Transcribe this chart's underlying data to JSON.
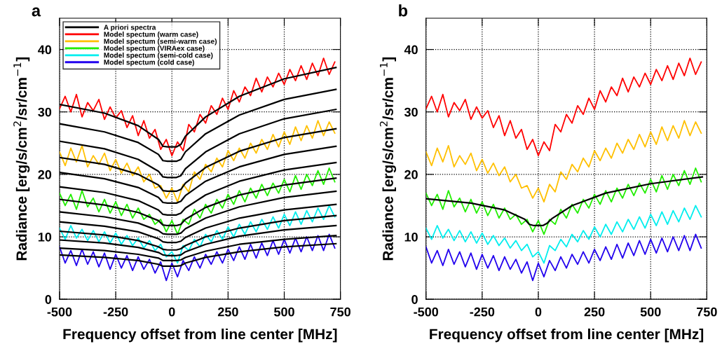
{
  "chart_data": [
    {
      "type": "line",
      "title": "a",
      "xlabel": "Frequency offset from line center [MHz]",
      "ylabel": "Radiance [erg/s/cm$^{2}$/sr/cm$^{−1}$]",
      "xlim": [
        -500,
        750
      ],
      "xticks": [
        -500,
        -250,
        0,
        250,
        500,
        750
      ],
      "ylim": [
        0,
        45
      ],
      "yticks": [
        0,
        10,
        20,
        30,
        40
      ],
      "grid": true,
      "legend": "top left",
      "line_style": "solid",
      "series": [
        {
          "name": "A priori spectra",
          "color": "#000000",
          "x": [
            -500,
            -300,
            -150,
            -60,
            -40,
            -20,
            20,
            40,
            60,
            150,
            300,
            500,
            730
          ],
          "values": [
            31.2,
            29.8,
            27.8,
            25.6,
            24.5,
            24.4,
            24.4,
            24.8,
            26.1,
            29.2,
            32.5,
            35.3,
            37.1
          ]
        },
        {
          "color": "#000000",
          "x": [
            -500,
            -300,
            -150,
            -60,
            -40,
            -20,
            20,
            40,
            60,
            150,
            300,
            500,
            730
          ],
          "values": [
            28.1,
            26.8,
            25.1,
            23.2,
            22.2,
            22.1,
            22.1,
            22.4,
            23.6,
            26.5,
            29.5,
            32.0,
            33.6
          ]
        },
        {
          "color": "#000000",
          "x": [
            -500,
            -300,
            -150,
            -60,
            -40,
            -20,
            20,
            40,
            60,
            150,
            300,
            500,
            730
          ],
          "values": [
            25.3,
            24.1,
            22.4,
            20.5,
            19.6,
            19.5,
            19.5,
            19.8,
            20.9,
            23.6,
            26.5,
            28.9,
            30.4
          ]
        },
        {
          "color": "#000000",
          "x": [
            -500,
            -300,
            -150,
            -60,
            -40,
            -20,
            20,
            40,
            60,
            150,
            300,
            500,
            730
          ],
          "values": [
            22.7,
            21.6,
            20.0,
            18.3,
            17.4,
            17.3,
            17.3,
            17.6,
            18.6,
            21.1,
            23.7,
            25.9,
            27.3
          ]
        },
        {
          "color": "#000000",
          "x": [
            -500,
            -300,
            -150,
            -60,
            -40,
            -20,
            20,
            40,
            60,
            150,
            300,
            500,
            730
          ],
          "values": [
            20.3,
            19.3,
            17.9,
            16.3,
            15.5,
            15.4,
            15.4,
            15.7,
            16.6,
            18.9,
            21.2,
            23.2,
            24.5
          ]
        },
        {
          "color": "#000000",
          "x": [
            -500,
            -300,
            -150,
            -60,
            -40,
            -20,
            20,
            40,
            60,
            150,
            300,
            500,
            730
          ],
          "values": [
            18.0,
            17.1,
            15.8,
            14.3,
            13.6,
            13.5,
            13.5,
            13.8,
            14.6,
            16.7,
            18.9,
            20.7,
            21.9
          ]
        },
        {
          "color": "#000000",
          "x": [
            -500,
            -300,
            -150,
            -60,
            -40,
            -20,
            20,
            40,
            60,
            150,
            300,
            500,
            730
          ],
          "values": [
            16.0,
            15.1,
            13.9,
            12.6,
            11.9,
            11.8,
            11.8,
            12.0,
            12.8,
            14.7,
            16.7,
            18.3,
            19.4
          ]
        },
        {
          "color": "#000000",
          "x": [
            -500,
            -300,
            -150,
            -60,
            -40,
            -20,
            20,
            40,
            60,
            150,
            300,
            500,
            730
          ],
          "values": [
            14.0,
            13.2,
            12.2,
            11.0,
            10.5,
            10.4,
            10.4,
            10.6,
            11.3,
            13.0,
            14.8,
            16.3,
            17.3
          ]
        },
        {
          "color": "#000000",
          "x": [
            -500,
            -300,
            -150,
            -60,
            -40,
            -20,
            20,
            40,
            60,
            150,
            300,
            500,
            730
          ],
          "values": [
            12.4,
            11.7,
            10.8,
            9.7,
            9.2,
            9.1,
            9.1,
            9.3,
            9.9,
            11.4,
            13.0,
            14.3,
            15.2
          ]
        },
        {
          "color": "#000000",
          "x": [
            -500,
            -300,
            -150,
            -60,
            -40,
            -20,
            20,
            40,
            60,
            150,
            300,
            500,
            730
          ],
          "values": [
            10.9,
            10.3,
            9.4,
            8.4,
            8.0,
            7.9,
            7.9,
            8.1,
            8.6,
            10.0,
            11.4,
            12.6,
            13.4
          ]
        },
        {
          "color": "#000000",
          "x": [
            -500,
            -300,
            -150,
            -60,
            -40,
            -20,
            20,
            40,
            60,
            150,
            300,
            500,
            730
          ],
          "values": [
            9.5,
            9.0,
            8.3,
            7.5,
            7.1,
            7.0,
            7.0,
            7.1,
            7.6,
            8.8,
            10.1,
            11.1,
            11.8
          ]
        },
        {
          "color": "#000000",
          "x": [
            -500,
            -300,
            -150,
            -60,
            -40,
            -20,
            20,
            40,
            60,
            150,
            300,
            500,
            730
          ],
          "values": [
            8.2,
            7.8,
            7.2,
            6.6,
            6.2,
            6.2,
            6.2,
            6.3,
            6.7,
            7.7,
            8.8,
            9.6,
            10.2
          ]
        },
        {
          "color": "#000000",
          "x": [
            -500,
            -300,
            -150,
            -60,
            -40,
            -20,
            20,
            40,
            60,
            150,
            300,
            500,
            730
          ],
          "values": [
            7.1,
            6.7,
            6.2,
            5.6,
            5.3,
            5.3,
            5.3,
            5.4,
            5.8,
            6.7,
            7.6,
            8.4,
            8.9
          ]
        },
        {
          "name": "Model spectum (warm case)",
          "color": "#ff0000",
          "values": [
            30.5,
            32.5,
            30.0,
            32.8,
            29.2,
            31.5,
            30.2,
            32.0,
            28.8,
            30.8,
            29.0,
            30.2,
            27.5,
            29.4,
            26.2,
            28.6,
            25.8,
            27.2,
            24.0,
            25.6,
            23.0,
            25.2,
            23.8,
            28.0,
            26.8,
            29.6,
            28.2,
            31.0,
            29.6,
            32.2,
            30.4,
            33.4,
            31.6,
            34.0,
            32.6,
            35.4,
            33.2,
            35.6,
            34.0,
            36.2,
            34.4,
            36.8,
            35.0,
            37.4,
            35.2,
            37.8,
            35.8,
            38.6,
            36.0,
            38.0
          ]
        },
        {
          "name": "Model spectum (semi-warm case)",
          "color": "#ffc000",
          "values": [
            23.6,
            21.4,
            24.2,
            22.0,
            24.6,
            21.2,
            23.0,
            21.6,
            23.4,
            20.6,
            22.4,
            20.2,
            21.8,
            19.8,
            21.2,
            18.8,
            20.0,
            17.8,
            18.2,
            16.2,
            17.8,
            15.6,
            18.4,
            17.2,
            20.4,
            19.2,
            21.6,
            20.4,
            22.6,
            21.2,
            23.8,
            22.2,
            24.2,
            22.6,
            25.0,
            23.4,
            25.6,
            24.0,
            26.4,
            24.4,
            26.8,
            24.8,
            27.6,
            25.4,
            27.8,
            25.8,
            28.6,
            26.2,
            28.4,
            26.6
          ]
        },
        {
          "name": "Model spectum (VIRAex case)",
          "color": "#22ee00",
          "values": [
            17.0,
            15.0,
            16.8,
            14.4,
            17.4,
            14.8,
            16.2,
            14.0,
            16.0,
            13.8,
            15.6,
            13.4,
            15.2,
            13.0,
            14.6,
            12.8,
            13.6,
            12.0,
            12.8,
            10.8,
            12.6,
            10.4,
            12.8,
            12.0,
            14.4,
            13.0,
            15.2,
            13.8,
            16.0,
            14.6,
            16.8,
            15.2,
            17.4,
            15.6,
            17.8,
            16.2,
            18.4,
            16.6,
            18.6,
            17.0,
            19.2,
            17.2,
            19.8,
            17.6,
            20.0,
            18.2,
            20.6,
            18.4,
            21.0,
            18.8
          ]
        },
        {
          "name": "Model spectum (semi-cold case)",
          "color": "#00eeee",
          "values": [
            11.4,
            9.6,
            11.8,
            9.8,
            11.2,
            9.4,
            11.0,
            9.2,
            10.8,
            9.0,
            10.6,
            8.8,
            10.2,
            8.6,
            9.8,
            8.2,
            9.4,
            7.8,
            8.8,
            6.8,
            7.6,
            5.8,
            8.6,
            7.8,
            9.6,
            8.4,
            10.4,
            9.2,
            11.0,
            9.6,
            11.6,
            10.0,
            12.0,
            10.4,
            12.4,
            10.8,
            12.8,
            11.2,
            13.2,
            11.4,
            13.6,
            11.8,
            14.0,
            12.0,
            14.2,
            12.4,
            14.6,
            12.8,
            15.0,
            13.2
          ]
        },
        {
          "name": "Model spectum (cold case)",
          "color": "#2200ee",
          "values": [
            8.4,
            5.8,
            7.8,
            5.4,
            8.0,
            5.6,
            7.6,
            5.2,
            7.4,
            4.8,
            7.2,
            5.0,
            7.0,
            4.6,
            6.8,
            4.8,
            6.4,
            4.2,
            6.0,
            3.0,
            5.8,
            3.6,
            6.2,
            4.6,
            6.8,
            5.0,
            7.2,
            5.6,
            7.6,
            5.8,
            8.0,
            6.2,
            8.4,
            6.4,
            8.8,
            6.6,
            9.0,
            7.0,
            9.4,
            7.2,
            9.6,
            7.4,
            9.8,
            7.6,
            10.0,
            7.8,
            10.2,
            7.8,
            10.4,
            8.2
          ]
        }
      ],
      "x": [
        -500,
        -475,
        -450,
        -425,
        -400,
        -375,
        -350,
        -325,
        -300,
        -275,
        -250,
        -225,
        -200,
        -175,
        -150,
        -125,
        -100,
        -75,
        -50,
        -25,
        0,
        25,
        50,
        75,
        100,
        125,
        150,
        175,
        200,
        225,
        250,
        275,
        300,
        325,
        350,
        375,
        400,
        425,
        450,
        475,
        500,
        525,
        550,
        575,
        600,
        625,
        650,
        675,
        700,
        725
      ]
    },
    {
      "type": "line",
      "title": "b",
      "xlabel": "Frequency offset from line center [MHz]",
      "ylabel": "Radiance [erg/s/cm$^{2}$/sr/cm$^{−1}$]",
      "xlim": [
        -500,
        750
      ],
      "xticks": [
        -500,
        -250,
        0,
        250,
        500,
        750
      ],
      "ylim": [
        0,
        45
      ],
      "yticks": [
        0,
        10,
        20,
        30,
        40
      ],
      "grid": true,
      "line_style": "solid",
      "series": [
        {
          "color": "#000000",
          "x": [
            -500,
            -300,
            -150,
            -60,
            -40,
            -20,
            20,
            40,
            60,
            150,
            300,
            500,
            730
          ],
          "values": [
            16.1,
            15.4,
            14.3,
            12.8,
            12.0,
            11.8,
            11.8,
            12.2,
            12.9,
            15.0,
            17.0,
            18.5,
            19.6
          ]
        },
        {
          "color": "#ff0000",
          "values": [
            30.5,
            32.5,
            30.0,
            32.8,
            29.2,
            31.5,
            30.2,
            32.0,
            28.8,
            30.8,
            29.0,
            30.2,
            27.5,
            29.4,
            26.2,
            28.6,
            25.8,
            27.2,
            24.0,
            25.6,
            23.0,
            25.2,
            23.8,
            28.0,
            26.8,
            29.6,
            28.2,
            31.0,
            29.6,
            32.2,
            30.4,
            33.4,
            31.6,
            34.0,
            32.6,
            35.4,
            33.2,
            35.6,
            34.0,
            36.2,
            34.4,
            36.8,
            35.0,
            37.4,
            35.2,
            37.8,
            35.8,
            38.6,
            36.0,
            38.0
          ]
        },
        {
          "color": "#ffc000",
          "values": [
            23.6,
            21.4,
            24.2,
            22.0,
            24.6,
            21.2,
            23.0,
            21.6,
            23.4,
            20.6,
            22.4,
            20.2,
            21.8,
            19.8,
            21.2,
            18.8,
            20.0,
            17.8,
            18.2,
            16.2,
            17.8,
            15.6,
            18.4,
            17.2,
            20.4,
            19.2,
            21.6,
            20.4,
            22.6,
            21.2,
            23.8,
            22.2,
            24.2,
            22.6,
            25.0,
            23.4,
            25.6,
            24.0,
            26.4,
            24.4,
            26.8,
            24.8,
            27.6,
            25.4,
            27.8,
            25.8,
            28.6,
            26.2,
            28.4,
            26.6
          ]
        },
        {
          "color": "#22ee00",
          "values": [
            17.0,
            15.0,
            16.8,
            14.4,
            17.4,
            14.8,
            16.2,
            14.0,
            16.0,
            13.8,
            15.6,
            13.4,
            15.2,
            13.0,
            14.6,
            12.8,
            13.6,
            12.0,
            12.8,
            10.8,
            12.6,
            10.4,
            12.8,
            12.0,
            14.4,
            13.0,
            15.2,
            13.8,
            16.0,
            14.6,
            16.8,
            15.2,
            17.4,
            15.6,
            17.8,
            16.2,
            18.4,
            16.6,
            18.6,
            17.0,
            19.2,
            17.2,
            19.8,
            17.6,
            20.0,
            18.2,
            20.6,
            18.4,
            21.0,
            18.8
          ]
        },
        {
          "color": "#00eeee",
          "values": [
            11.4,
            9.6,
            11.8,
            9.8,
            11.2,
            9.4,
            11.0,
            9.2,
            10.8,
            9.0,
            10.6,
            8.8,
            10.2,
            8.6,
            9.8,
            8.2,
            9.4,
            7.8,
            8.8,
            6.8,
            7.6,
            5.8,
            8.6,
            7.8,
            9.6,
            8.4,
            10.4,
            9.2,
            11.0,
            9.6,
            11.6,
            10.0,
            12.0,
            10.4,
            12.4,
            10.8,
            12.8,
            11.2,
            13.2,
            11.4,
            13.6,
            11.8,
            14.0,
            12.0,
            14.2,
            12.4,
            14.6,
            12.8,
            15.0,
            13.2
          ]
        },
        {
          "color": "#2200ee",
          "values": [
            8.4,
            5.8,
            7.8,
            5.4,
            8.0,
            5.6,
            7.6,
            5.2,
            7.4,
            4.8,
            7.2,
            5.0,
            7.0,
            4.6,
            6.8,
            4.8,
            6.4,
            4.2,
            6.0,
            3.0,
            5.8,
            3.6,
            6.2,
            4.6,
            6.8,
            5.0,
            7.2,
            5.6,
            7.6,
            5.8,
            8.0,
            6.2,
            8.4,
            6.4,
            8.8,
            6.6,
            9.0,
            7.0,
            9.4,
            7.2,
            9.6,
            7.4,
            9.8,
            7.6,
            10.0,
            7.8,
            10.2,
            7.8,
            10.4,
            8.2
          ]
        }
      ],
      "x": [
        -500,
        -475,
        -450,
        -425,
        -400,
        -375,
        -350,
        -325,
        -300,
        -275,
        -250,
        -225,
        -200,
        -175,
        -150,
        -125,
        -100,
        -75,
        -50,
        -25,
        0,
        25,
        50,
        75,
        100,
        125,
        150,
        175,
        200,
        225,
        250,
        275,
        300,
        325,
        350,
        375,
        400,
        425,
        450,
        475,
        500,
        525,
        550,
        575,
        600,
        625,
        650,
        675,
        700,
        725
      ]
    }
  ]
}
